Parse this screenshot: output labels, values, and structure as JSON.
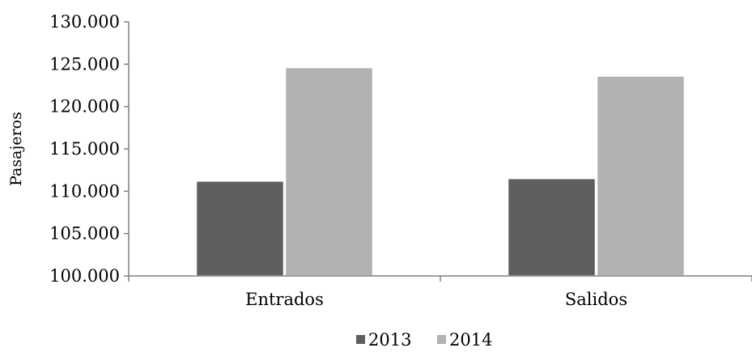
{
  "chart_data": {
    "type": "bar",
    "title": "",
    "xlabel": "",
    "ylabel": "Pasajeros",
    "categories": [
      "Entrados",
      "Salidos"
    ],
    "series": [
      {
        "name": "2013",
        "color": "#5f5f5f",
        "values": [
          111200,
          111500
        ]
      },
      {
        "name": "2014",
        "color": "#b2b2b2",
        "values": [
          124600,
          123600
        ]
      }
    ],
    "ylim": [
      100000,
      130000
    ],
    "yticks": [
      100000,
      105000,
      110000,
      115000,
      120000,
      125000,
      130000
    ],
    "ytick_labels": [
      "100.000",
      "105.000",
      "110.000",
      "115.000",
      "120.000",
      "125.000",
      "130.000"
    ],
    "grid": false,
    "legend": "bottom-center"
  }
}
